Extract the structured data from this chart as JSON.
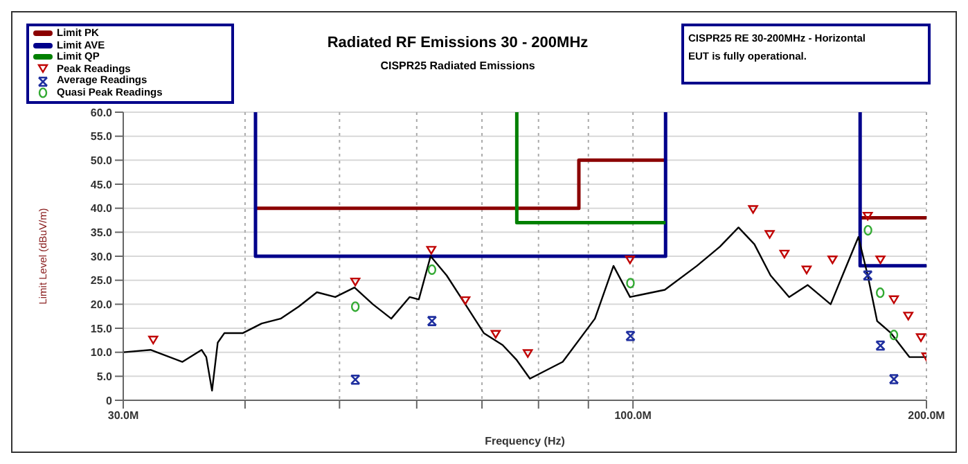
{
  "chart_data": {
    "type": "line",
    "title": "Radiated RF Emissions 30 - 200MHz",
    "subtitle": "CISPR25 Radiated Emissions",
    "xlabel": "Frequency (Hz)",
    "ylabel": "Limit Level (dBuV/m)",
    "annotations": [
      "CISPR25 RE 30-200MHz - Horizontal",
      "EUT is fully operational."
    ],
    "log": "x",
    "grid": true,
    "legend": "top left",
    "xlim": [
      30,
      200
    ],
    "xticks": [
      {
        "value": 30,
        "label": "30.0M"
      },
      {
        "value": 40,
        "label": null
      },
      {
        "value": 50,
        "label": null
      },
      {
        "value": 60,
        "label": null
      },
      {
        "value": 70,
        "label": null
      },
      {
        "value": 80,
        "label": null
      },
      {
        "value": 90,
        "label": null
      },
      {
        "value": 100,
        "label": "100.0M"
      },
      {
        "value": 200,
        "label": "200.0M"
      }
    ],
    "ylim": [
      0,
      60
    ],
    "yticks": [
      0,
      {
        "value": 5,
        "label": "5.0"
      },
      {
        "value": 10,
        "label": "10.0"
      },
      {
        "value": 15,
        "label": "15.0"
      },
      {
        "value": 20,
        "label": "20.0"
      },
      {
        "value": 25,
        "label": "25.0"
      },
      {
        "value": 30,
        "label": "30.0"
      },
      {
        "value": 35,
        "label": "35.0"
      },
      {
        "value": 40,
        "label": "40.0"
      },
      {
        "value": 45,
        "label": "45.0"
      },
      {
        "value": 50,
        "label": "50.0"
      },
      {
        "value": 55,
        "label": "55.0"
      },
      {
        "value": 60,
        "label": "60.0"
      }
    ],
    "series": [
      {
        "name": "Limit PK",
        "color": "#8b0000",
        "x": [
          41,
          88,
          88,
          108,
          null,
          171,
          200
        ],
        "values": [
          40,
          40,
          50,
          50,
          null,
          38,
          38
        ]
      },
      {
        "name": "Limit AVE",
        "color": "#00008b",
        "x": [
          41,
          41,
          108,
          108,
          null,
          171,
          171,
          200
        ],
        "values": [
          60,
          30,
          30,
          60,
          null,
          60,
          28,
          28
        ]
      },
      {
        "name": "Limit QP",
        "color": "#008000",
        "x": [
          76,
          76,
          108
        ],
        "values": [
          60,
          37,
          37
        ]
      },
      {
        "name": "Peak Readings",
        "type": "scatter",
        "marker": "triangle",
        "color": "#c00000",
        "x": [
          32.2,
          51.9,
          62.1,
          67.3,
          72.3,
          78,
          99.3,
          132.8,
          138.1,
          143,
          150.7,
          160.2,
          174.1,
          179.4,
          185.2,
          191.6,
          197.4,
          200
        ],
        "values": [
          12.4,
          24.5,
          31.1,
          20.6,
          13.6,
          9.6,
          29.1,
          39.6,
          34.4,
          30.3,
          27,
          29.1,
          38.2,
          29.1,
          20.8,
          17.4,
          12.9,
          8.9
        ]
      },
      {
        "name": "Average Readings",
        "type": "scatter",
        "marker": "cross",
        "color": "#1f2f9f",
        "x": [
          51.9,
          62.2,
          99.4,
          174.1,
          179.4,
          185.2
        ],
        "values": [
          4.3,
          16.5,
          13.4,
          26,
          11.4,
          4.4
        ]
      },
      {
        "name": "Quasi Peak Readings",
        "type": "scatter",
        "marker": "circle",
        "color": "#33aa33",
        "x": [
          51.9,
          62.2,
          99.4,
          174.2,
          179.3,
          185.2
        ],
        "values": [
          19.5,
          27.2,
          24.4,
          35.4,
          22.4,
          13.6
        ]
      },
      {
        "color": "#000000",
        "x": [
          30,
          32,
          34.5,
          36.1,
          36.5,
          37,
          37.5,
          38.1,
          39.8,
          41.6,
          43.5,
          45.4,
          47.4,
          49.5,
          51.8,
          54.1,
          56.5,
          59,
          60.3,
          62,
          64.4,
          67.3,
          70.3,
          73.5,
          75.9,
          78.4,
          84.7,
          91.4,
          95.5,
          99.3,
          102,
          107.8,
          116.3,
          122.8,
          128.3,
          133.2,
          138.4,
          144.6,
          151.1,
          159.5,
          164.8,
          170.3,
          174.1,
          178,
          183.9,
          192.1,
          199.5,
          200
        ],
        "values": [
          10,
          10.5,
          8,
          10.5,
          9,
          2,
          12,
          14,
          14,
          16,
          17,
          19.5,
          22.5,
          21.5,
          23.5,
          20,
          17,
          21.5,
          21,
          30,
          26,
          20,
          14,
          11.5,
          8.5,
          4.5,
          8,
          17,
          28,
          21.5,
          22,
          23,
          28,
          32,
          36,
          32.5,
          26,
          21.5,
          24,
          20,
          27,
          34,
          26,
          16.5,
          14,
          9,
          9,
          9
        ]
      }
    ]
  }
}
